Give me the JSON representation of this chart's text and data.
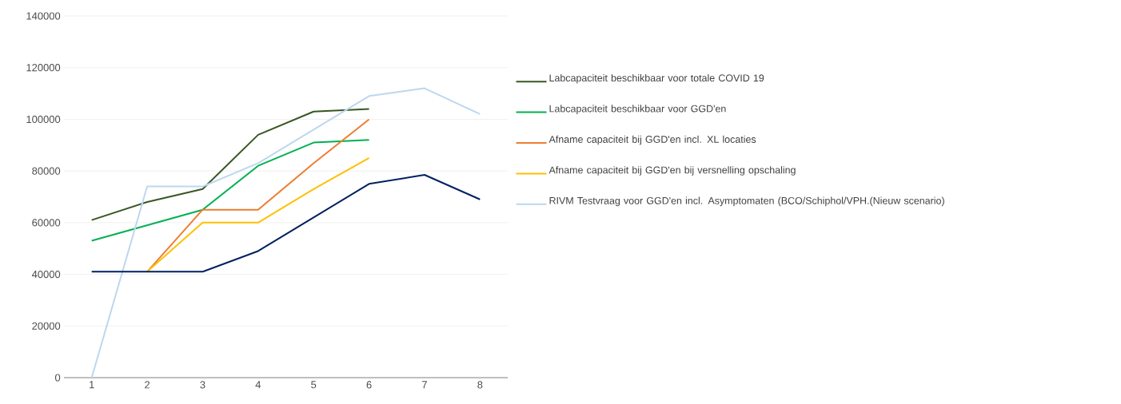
{
  "chart_data": {
    "type": "line",
    "categories": [
      "1",
      "2",
      "3",
      "4",
      "5",
      "6",
      "7",
      "8"
    ],
    "ylim": [
      0,
      140000
    ],
    "yticks": [
      0,
      20000,
      40000,
      60000,
      80000,
      100000,
      120000,
      140000
    ],
    "grid": "y",
    "legend": "right",
    "marker": "none",
    "series": [
      {
        "name": "Labcapaciteit beschikbaar voor totale COVID 19",
        "color": "#375623",
        "values": [
          61000,
          68000,
          73000,
          94000,
          103000,
          104000,
          null,
          null
        ]
      },
      {
        "name": "Labcapaciteit beschikbaar voor GGD'en",
        "color": "#00b050",
        "values": [
          53000,
          59000,
          65000,
          82000,
          91000,
          92000,
          null,
          null
        ]
      },
      {
        "name": "Afname capaciteit bij GGD'en incl. XL locaties",
        "color": "#ed7d31",
        "values": [
          null,
          41000,
          65000,
          65000,
          83000,
          100000,
          null,
          null
        ]
      },
      {
        "name": "Afname capaciteit bij GGD'en bij versnelling opschaling",
        "color": "#ffc000",
        "values": [
          null,
          41000,
          60000,
          60000,
          73000,
          85000,
          null,
          null
        ]
      },
      {
        "name": "RIVM Testvraag voor GGD'en incl. Asymptomaten (BCO/Schiphol/VPH.(Nieuw scenario)",
        "color": "#bdd7ee",
        "values": [
          0,
          74000,
          74000,
          83000,
          96000,
          109000,
          112000,
          102000
        ]
      },
      {
        "color": "#002060",
        "values": [
          41000,
          41000,
          41000,
          49000,
          62000,
          75000,
          78500,
          69000
        ]
      }
    ]
  }
}
